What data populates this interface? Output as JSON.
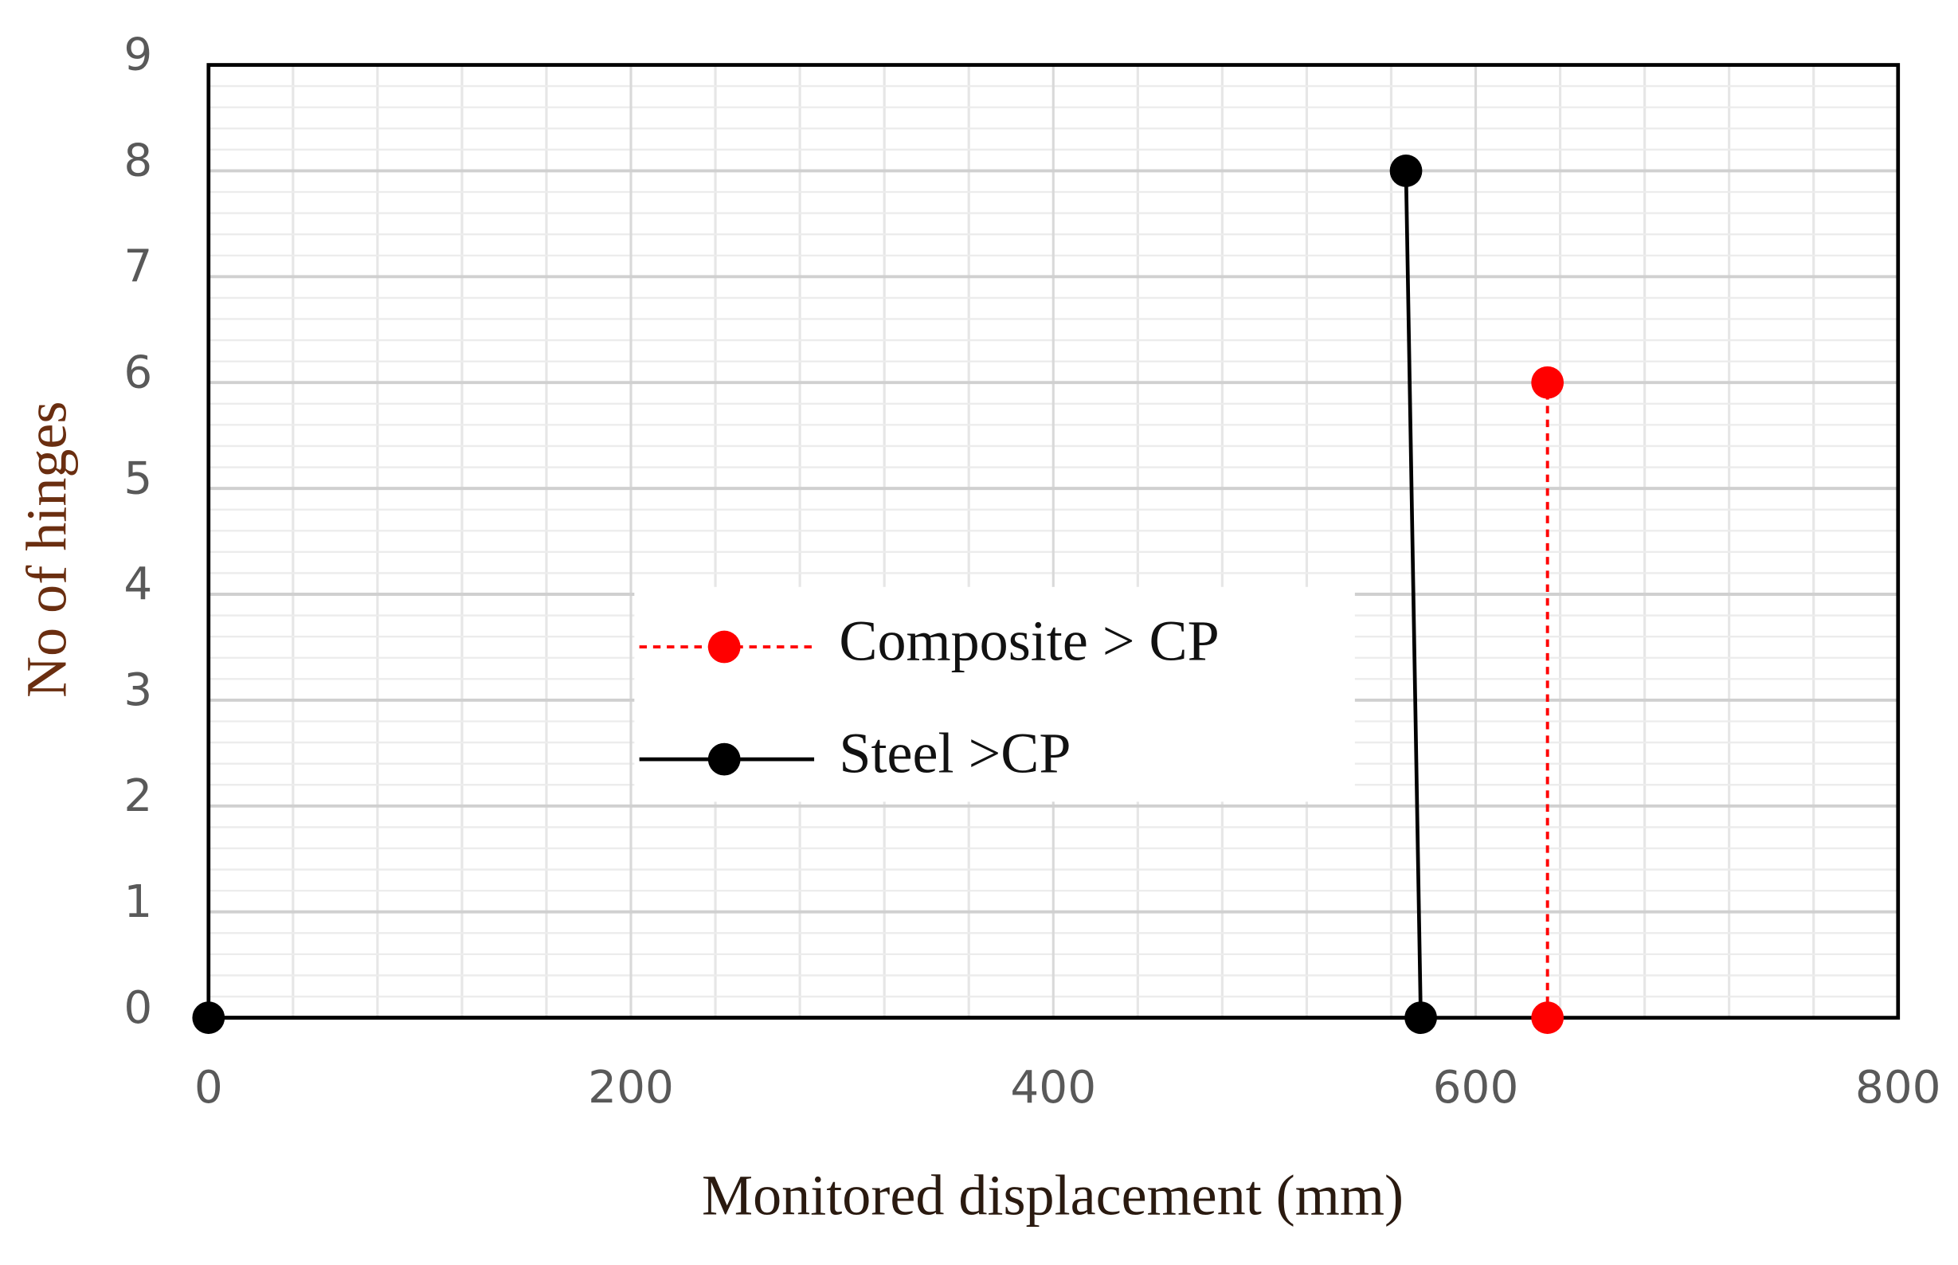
{
  "chart_data": {
    "type": "scatter",
    "x_label": "Monitored displacement (mm)",
    "y_label": "No of hinges",
    "series": [
      {
        "name": "Composite > CP",
        "color": "#ff0000",
        "dash": true,
        "x": [
          634,
          634
        ],
        "values": [
          0,
          6
        ]
      },
      {
        "name": "Steel >CP",
        "color": "#000000",
        "dash": false,
        "x": [
          0,
          574,
          567
        ],
        "values": [
          0,
          0,
          8
        ]
      }
    ],
    "xlim": [
      0,
      800
    ],
    "xticks": [
      0,
      200,
      400,
      600,
      800
    ],
    "ylim": [
      0,
      9
    ],
    "yticks": [
      0,
      1,
      2,
      3,
      4,
      5,
      6,
      7,
      8,
      9
    ],
    "grid": true
  }
}
